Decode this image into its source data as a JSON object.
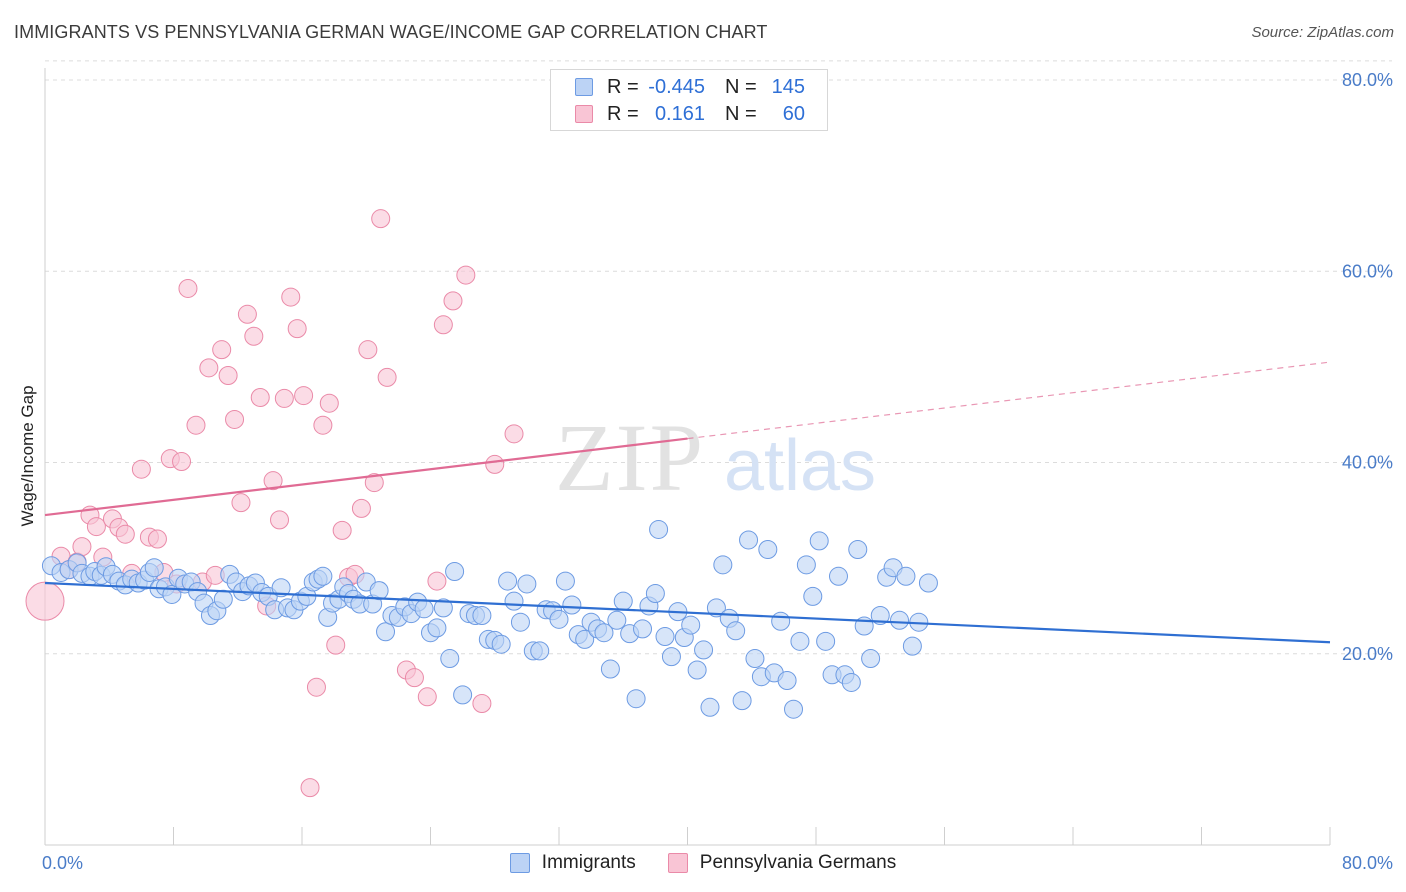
{
  "title": "IMMIGRANTS VS PENNSYLVANIA GERMAN WAGE/INCOME GAP CORRELATION CHART",
  "source": "Source: ZipAtlas.com",
  "watermark": {
    "zip": "ZIP",
    "atlas": "atlas"
  },
  "legend": {
    "rows": [
      {
        "r_label": "R =",
        "r_value": "-0.445",
        "n_label": "N =",
        "n_value": "145"
      },
      {
        "r_label": "R =",
        "r_value": "0.161",
        "n_label": "N =",
        "n_value": "60"
      }
    ]
  },
  "bottom_legend": [
    "Immigrants",
    "Pennsylvania Germans"
  ],
  "colors": {
    "blue_fill": "#bcd3f5",
    "blue_stroke": "#6d9be3",
    "blue_line": "#2f6fd2",
    "pink_fill": "#f9c5d5",
    "pink_stroke": "#ea8aa8",
    "pink_line": "#e06b94",
    "grid": "#dcdcdc",
    "tick_text": "#4a7cc8"
  },
  "chart_data": {
    "type": "scatter",
    "title": "IMMIGRANTS VS PENNSYLVANIA GERMAN WAGE/INCOME GAP CORRELATION CHART",
    "xlabel": "",
    "ylabel": "Wage/Income Gap",
    "xlim": [
      0,
      80
    ],
    "ylim": [
      0,
      82
    ],
    "x_tick_labels": [
      "0.0%",
      "80.0%"
    ],
    "y_ticks": [
      20,
      40,
      60,
      80
    ],
    "y_tick_labels": [
      "20.0%",
      "40.0%",
      "60.0%",
      "80.0%"
    ],
    "grid": "horizontal dashed",
    "legend_placement": "top-center",
    "series": [
      {
        "name": "Immigrants",
        "r": -0.445,
        "n": 145,
        "trend": {
          "x": [
            0,
            80
          ],
          "y": [
            27.4,
            21.2
          ],
          "style": "solid"
        },
        "points": [
          [
            0.4,
            29.2
          ],
          [
            1.0,
            28.5
          ],
          [
            1.5,
            28.8
          ],
          [
            2.0,
            29.5
          ],
          [
            2.3,
            28.4
          ],
          [
            2.8,
            28.1
          ],
          [
            3.1,
            28.6
          ],
          [
            3.5,
            28.2
          ],
          [
            3.8,
            29.1
          ],
          [
            4.2,
            28.3
          ],
          [
            4.6,
            27.6
          ],
          [
            5.0,
            27.2
          ],
          [
            5.4,
            27.8
          ],
          [
            5.8,
            27.4
          ],
          [
            6.2,
            27.7
          ],
          [
            6.5,
            28.5
          ],
          [
            6.8,
            29.0
          ],
          [
            7.1,
            26.8
          ],
          [
            7.5,
            27.0
          ],
          [
            7.9,
            26.2
          ],
          [
            8.3,
            27.9
          ],
          [
            8.7,
            27.3
          ],
          [
            9.1,
            27.5
          ],
          [
            9.5,
            26.5
          ],
          [
            9.9,
            25.3
          ],
          [
            10.3,
            24.0
          ],
          [
            10.7,
            24.5
          ],
          [
            11.1,
            25.7
          ],
          [
            11.5,
            28.3
          ],
          [
            11.9,
            27.5
          ],
          [
            12.3,
            26.5
          ],
          [
            12.7,
            27.1
          ],
          [
            13.1,
            27.4
          ],
          [
            13.5,
            26.4
          ],
          [
            13.9,
            26.0
          ],
          [
            14.3,
            24.6
          ],
          [
            14.7,
            26.9
          ],
          [
            15.1,
            24.8
          ],
          [
            15.5,
            24.6
          ],
          [
            15.9,
            25.5
          ],
          [
            16.3,
            26.0
          ],
          [
            16.7,
            27.5
          ],
          [
            17.0,
            27.8
          ],
          [
            17.3,
            28.1
          ],
          [
            17.6,
            23.8
          ],
          [
            17.9,
            25.3
          ],
          [
            18.3,
            25.7
          ],
          [
            18.6,
            27.0
          ],
          [
            18.9,
            26.3
          ],
          [
            19.2,
            25.7
          ],
          [
            19.6,
            25.2
          ],
          [
            20.0,
            27.5
          ],
          [
            20.4,
            25.2
          ],
          [
            20.8,
            26.6
          ],
          [
            21.2,
            22.3
          ],
          [
            21.6,
            24.0
          ],
          [
            22.0,
            23.8
          ],
          [
            22.4,
            24.9
          ],
          [
            22.8,
            24.2
          ],
          [
            23.2,
            25.4
          ],
          [
            23.6,
            24.7
          ],
          [
            24.0,
            22.2
          ],
          [
            24.4,
            22.7
          ],
          [
            24.8,
            24.8
          ],
          [
            25.2,
            19.5
          ],
          [
            25.5,
            28.6
          ],
          [
            26.0,
            15.7
          ],
          [
            26.4,
            24.2
          ],
          [
            26.8,
            24.0
          ],
          [
            27.2,
            24.0
          ],
          [
            27.6,
            21.5
          ],
          [
            28.0,
            21.4
          ],
          [
            28.4,
            21.0
          ],
          [
            28.8,
            27.6
          ],
          [
            29.2,
            25.5
          ],
          [
            29.6,
            23.3
          ],
          [
            30.0,
            27.3
          ],
          [
            30.4,
            20.3
          ],
          [
            30.8,
            20.3
          ],
          [
            31.2,
            24.6
          ],
          [
            31.6,
            24.5
          ],
          [
            32.0,
            23.6
          ],
          [
            32.4,
            27.6
          ],
          [
            32.8,
            25.1
          ],
          [
            33.2,
            22.0
          ],
          [
            33.6,
            21.5
          ],
          [
            34.0,
            23.3
          ],
          [
            34.4,
            22.6
          ],
          [
            34.8,
            22.2
          ],
          [
            35.2,
            18.4
          ],
          [
            35.6,
            23.5
          ],
          [
            36.0,
            25.5
          ],
          [
            36.4,
            22.1
          ],
          [
            36.8,
            15.3
          ],
          [
            37.2,
            22.6
          ],
          [
            37.6,
            25.0
          ],
          [
            38.0,
            26.3
          ],
          [
            38.2,
            33.0
          ],
          [
            38.6,
            21.8
          ],
          [
            39.0,
            19.7
          ],
          [
            39.4,
            24.4
          ],
          [
            39.8,
            21.7
          ],
          [
            40.2,
            23.0
          ],
          [
            40.6,
            18.3
          ],
          [
            41.0,
            20.4
          ],
          [
            41.4,
            14.4
          ],
          [
            41.8,
            24.8
          ],
          [
            42.2,
            29.3
          ],
          [
            42.6,
            23.7
          ],
          [
            43.0,
            22.4
          ],
          [
            43.4,
            15.1
          ],
          [
            43.8,
            31.9
          ],
          [
            44.2,
            19.5
          ],
          [
            44.6,
            17.6
          ],
          [
            45.0,
            30.9
          ],
          [
            45.4,
            18.0
          ],
          [
            45.8,
            23.4
          ],
          [
            46.2,
            17.2
          ],
          [
            46.6,
            14.2
          ],
          [
            47.0,
            21.3
          ],
          [
            47.4,
            29.3
          ],
          [
            47.8,
            26.0
          ],
          [
            48.2,
            31.8
          ],
          [
            48.6,
            21.3
          ],
          [
            49.0,
            17.8
          ],
          [
            49.4,
            28.1
          ],
          [
            49.8,
            17.8
          ],
          [
            50.2,
            17.0
          ],
          [
            50.6,
            30.9
          ],
          [
            51.0,
            22.9
          ],
          [
            51.4,
            19.5
          ],
          [
            52.0,
            24.0
          ],
          [
            52.4,
            28.0
          ],
          [
            52.8,
            29.0
          ],
          [
            53.2,
            23.5
          ],
          [
            53.6,
            28.1
          ],
          [
            54.0,
            20.8
          ],
          [
            54.4,
            23.3
          ],
          [
            55.0,
            27.4
          ]
        ]
      },
      {
        "name": "Pennsylvania Germans",
        "r": 0.161,
        "n": 60,
        "trend": {
          "x": [
            0,
            40
          ],
          "y": [
            34.5,
            42.5
          ],
          "style": "solid",
          "extended_to": [
            80,
            50.5
          ],
          "extended_style": "dashed"
        },
        "points": [
          [
            0.0,
            25.5
          ],
          [
            1.0,
            30.2
          ],
          [
            1.5,
            28.8
          ],
          [
            2.0,
            29.6
          ],
          [
            2.3,
            31.2
          ],
          [
            2.8,
            34.5
          ],
          [
            3.2,
            33.3
          ],
          [
            3.6,
            30.1
          ],
          [
            4.2,
            34.1
          ],
          [
            4.6,
            33.2
          ],
          [
            5.0,
            32.5
          ],
          [
            5.4,
            28.4
          ],
          [
            6.0,
            39.3
          ],
          [
            6.5,
            32.2
          ],
          [
            7.0,
            32.0
          ],
          [
            7.4,
            28.5
          ],
          [
            7.8,
            40.4
          ],
          [
            8.2,
            27.3
          ],
          [
            8.5,
            40.1
          ],
          [
            8.9,
            58.2
          ],
          [
            9.4,
            43.9
          ],
          [
            9.8,
            27.5
          ],
          [
            10.2,
            49.9
          ],
          [
            10.6,
            28.2
          ],
          [
            11.0,
            51.8
          ],
          [
            11.4,
            49.1
          ],
          [
            11.8,
            44.5
          ],
          [
            12.2,
            35.8
          ],
          [
            12.6,
            55.5
          ],
          [
            13.0,
            53.2
          ],
          [
            13.4,
            46.8
          ],
          [
            13.8,
            25.0
          ],
          [
            14.2,
            38.1
          ],
          [
            14.6,
            34.0
          ],
          [
            14.9,
            46.7
          ],
          [
            15.3,
            57.3
          ],
          [
            15.7,
            54.0
          ],
          [
            16.1,
            47.0
          ],
          [
            16.5,
            6.0
          ],
          [
            16.9,
            16.5
          ],
          [
            17.3,
            43.9
          ],
          [
            17.7,
            46.2
          ],
          [
            18.1,
            20.9
          ],
          [
            18.5,
            32.9
          ],
          [
            18.9,
            28.0
          ],
          [
            19.3,
            28.3
          ],
          [
            19.7,
            35.2
          ],
          [
            20.1,
            51.8
          ],
          [
            20.5,
            37.9
          ],
          [
            20.9,
            65.5
          ],
          [
            21.3,
            48.9
          ],
          [
            22.5,
            18.3
          ],
          [
            23.0,
            17.5
          ],
          [
            23.8,
            15.5
          ],
          [
            24.4,
            27.6
          ],
          [
            24.8,
            54.4
          ],
          [
            25.4,
            56.9
          ],
          [
            26.2,
            59.6
          ],
          [
            27.2,
            14.8
          ],
          [
            28.0,
            39.8
          ],
          [
            29.2,
            43.0
          ]
        ]
      }
    ]
  }
}
